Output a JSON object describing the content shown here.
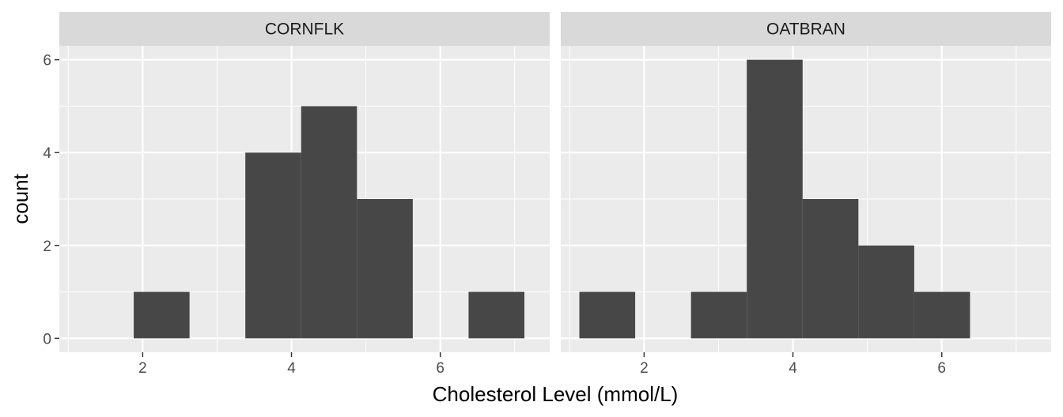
{
  "chart_data": {
    "type": "bar",
    "subtype": "histogram",
    "xlabel": "Cholesterol Level (mmol/L)",
    "ylabel": "count",
    "xlim": [
      0.88,
      7.47
    ],
    "ylim": [
      -0.3,
      6.3
    ],
    "x_ticks": [
      2,
      4,
      6
    ],
    "y_ticks": [
      0,
      2,
      4,
      6
    ],
    "bin_width": 0.75,
    "grid": true,
    "colors": {
      "bar": "#474747",
      "panel": "#ebebeb",
      "grid": "#ffffff",
      "strip": "#d9d9d9"
    },
    "panels": [
      {
        "label": "CORNFLK",
        "bins": [
          {
            "x0": 1.88,
            "x1": 2.63,
            "count": 1
          },
          {
            "x0": 2.63,
            "x1": 3.38,
            "count": 0
          },
          {
            "x0": 3.38,
            "x1": 4.13,
            "count": 4
          },
          {
            "x0": 4.13,
            "x1": 4.88,
            "count": 5
          },
          {
            "x0": 4.88,
            "x1": 5.63,
            "count": 3
          },
          {
            "x0": 5.63,
            "x1": 6.38,
            "count": 0
          },
          {
            "x0": 6.38,
            "x1": 7.13,
            "count": 1
          }
        ]
      },
      {
        "label": "OATBRAN",
        "bins": [
          {
            "x0": 1.13,
            "x1": 1.88,
            "count": 1
          },
          {
            "x0": 1.88,
            "x1": 2.63,
            "count": 0
          },
          {
            "x0": 2.63,
            "x1": 3.38,
            "count": 1
          },
          {
            "x0": 3.38,
            "x1": 4.13,
            "count": 6
          },
          {
            "x0": 4.13,
            "x1": 4.88,
            "count": 3
          },
          {
            "x0": 4.88,
            "x1": 5.63,
            "count": 2
          },
          {
            "x0": 5.63,
            "x1": 6.38,
            "count": 1
          }
        ]
      }
    ]
  }
}
